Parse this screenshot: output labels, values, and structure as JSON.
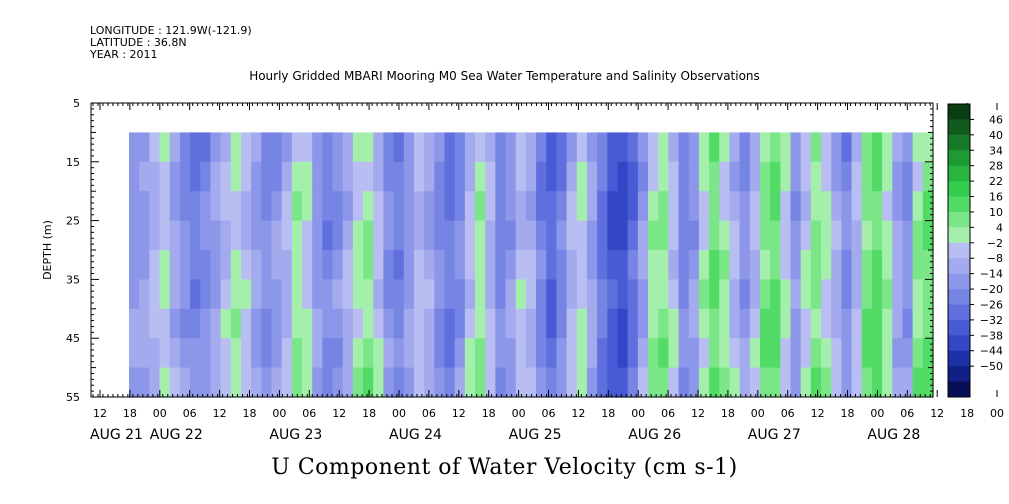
{
  "header": {
    "longitude": "LONGITUDE : 121.9W(-121.9)",
    "latitude": "LATITUDE : 36.8N",
    "year": "YEAR : 2011"
  },
  "chart_data": {
    "type": "heatmap",
    "title": "Hourly Gridded MBARI Mooring M0 Sea Water Temperature and Salinity Observations",
    "variable_label": "U Component of Water Velocity (cm s-1)",
    "ylabel": "DEPTH (m)",
    "y_ticks": [
      5,
      15,
      25,
      35,
      45,
      55
    ],
    "ylim": [
      55,
      5
    ],
    "data_depth_range": [
      10,
      55
    ],
    "x_hour_labels": [
      "12",
      "18",
      "00",
      "06",
      "12",
      "18",
      "00",
      "06",
      "12",
      "18",
      "00",
      "06",
      "12",
      "18",
      "00",
      "06",
      "12",
      "18",
      "00",
      "06",
      "12",
      "18",
      "00",
      "06",
      "12",
      "18",
      "00",
      "06",
      "12",
      "18",
      "00",
      "06"
    ],
    "x_day_labels": [
      "AUG 21",
      "AUG 22",
      "AUG 23",
      "AUG 24",
      "AUG 25",
      "AUG 26",
      "AUG 27",
      "AUG 28"
    ],
    "colorbar": {
      "levels": [
        "46",
        "40",
        "34",
        "28",
        "22",
        "16",
        "10",
        "4",
        "−2",
        "−8",
        "−14",
        "−20",
        "−26",
        "−32",
        "−38",
        "−44",
        "−50"
      ],
      "colors": [
        "#0b3d12",
        "#115a1d",
        "#177a28",
        "#1e9a33",
        "#28b43f",
        "#34cc4c",
        "#52db66",
        "#7be688",
        "#a5efad",
        "#b8bdf2",
        "#a3aaee",
        "#8d97ea",
        "#7684e4",
        "#5f70de",
        "#485bd4",
        "#3246c6",
        "#1e32a8",
        "#0f1f86",
        "#080f58"
      ]
    },
    "time_columns_u_cm_s": [
      -4,
      -2,
      4,
      10,
      0,
      -6,
      -12,
      -8,
      -2,
      6,
      12,
      8,
      -2,
      -8,
      -4,
      4,
      14,
      10,
      -4,
      -10,
      -6,
      2,
      12,
      16,
      6,
      -6,
      -12,
      -4,
      6,
      2,
      -8,
      -14,
      -6,
      6,
      14,
      4,
      -10,
      -4,
      8,
      2,
      -10,
      -18,
      -10,
      4,
      10,
      -2,
      -14,
      -22,
      -26,
      -16,
      -2,
      14,
      18,
      6,
      -10,
      -4,
      12,
      22,
      14,
      4,
      -6,
      6,
      18,
      22,
      10,
      -4,
      8,
      18,
      12,
      2,
      -8,
      4,
      20,
      24,
      14,
      0,
      -6,
      16,
      22
    ]
  }
}
